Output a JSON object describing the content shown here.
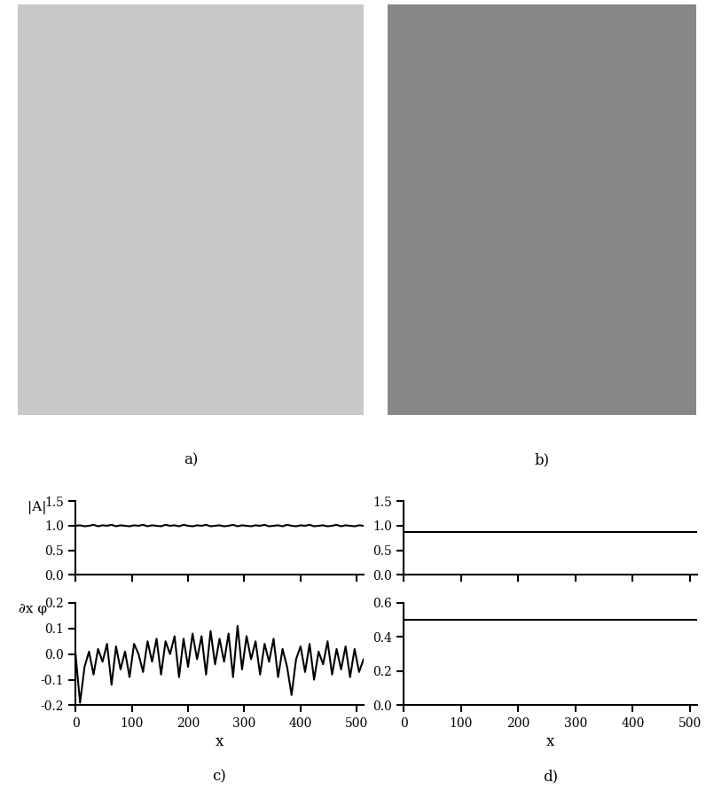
{
  "chart_data": [
    {
      "type": "image",
      "title": "a)",
      "color": "#c8c8c8"
    },
    {
      "type": "image",
      "title": "b)",
      "color": "#878787"
    },
    {
      "type": "line",
      "ylabel": "|A|",
      "color": "#000000",
      "x": [
        0,
        8,
        16,
        24,
        32,
        40,
        48,
        56,
        64,
        72,
        80,
        88,
        96,
        104,
        112,
        120,
        128,
        136,
        144,
        152,
        160,
        168,
        176,
        184,
        192,
        200,
        208,
        216,
        224,
        232,
        240,
        248,
        256,
        264,
        272,
        280,
        288,
        296,
        304,
        312,
        320,
        328,
        336,
        344,
        352,
        360,
        368,
        376,
        384,
        392,
        400,
        408,
        416,
        424,
        432,
        440,
        448,
        456,
        464,
        472,
        480,
        488,
        496,
        504,
        512
      ],
      "values": [
        1.0,
        1.01,
        0.99,
        1.0,
        1.02,
        0.99,
        1.01,
        1.0,
        1.02,
        0.99,
        1.01,
        1.0,
        0.99,
        1.01,
        1.0,
        1.02,
        0.99,
        1.01,
        1.0,
        0.99,
        1.02,
        1.0,
        1.01,
        0.99,
        1.02,
        1.0,
        0.99,
        1.01,
        1.0,
        1.02,
        0.99,
        1.0,
        1.01,
        0.99,
        1.0,
        1.02,
        0.99,
        1.01,
        1.0,
        0.99,
        1.01,
        1.0,
        1.02,
        0.99,
        1.0,
        1.01,
        0.99,
        1.02,
        1.0,
        0.99,
        1.01,
        1.0,
        1.02,
        0.99,
        1.0,
        1.01,
        0.99,
        1.0,
        1.02,
        0.99,
        1.01,
        1.0,
        0.99,
        1.01,
        1.0
      ],
      "xlim": [
        0,
        512
      ],
      "xticks": [
        0,
        100,
        200,
        300,
        400,
        500
      ],
      "tick_labels": "y",
      "ylim": [
        0,
        1.5
      ],
      "yticks": [
        {
          "value": 0,
          "label": "0.0"
        },
        {
          "value": 0.5,
          "label": "0.5"
        },
        {
          "value": 1.0,
          "label": "1.0"
        },
        {
          "value": 1.5,
          "label": "1.5"
        }
      ]
    },
    {
      "type": "line",
      "title": "c)",
      "ylabel": "∂x φ",
      "xlabel": "x",
      "color": "#000000",
      "x": [
        0,
        8,
        16,
        24,
        32,
        40,
        48,
        56,
        64,
        72,
        80,
        88,
        96,
        104,
        112,
        120,
        128,
        136,
        144,
        152,
        160,
        168,
        176,
        184,
        192,
        200,
        208,
        216,
        224,
        232,
        240,
        248,
        256,
        264,
        272,
        280,
        288,
        296,
        304,
        312,
        320,
        328,
        336,
        344,
        352,
        360,
        368,
        376,
        384,
        392,
        400,
        408,
        416,
        424,
        432,
        440,
        448,
        456,
        464,
        472,
        480,
        488,
        496,
        504,
        512
      ],
      "values": [
        0.0,
        -0.19,
        -0.05,
        0.01,
        -0.08,
        0.02,
        -0.03,
        0.04,
        -0.12,
        0.03,
        -0.06,
        0.01,
        -0.09,
        0.04,
        0.0,
        -0.07,
        0.05,
        -0.03,
        0.06,
        -0.08,
        0.05,
        0.0,
        0.07,
        -0.09,
        0.06,
        -0.05,
        0.08,
        -0.02,
        0.07,
        -0.08,
        0.09,
        -0.04,
        0.06,
        -0.03,
        0.08,
        -0.09,
        0.11,
        -0.06,
        0.07,
        -0.02,
        0.05,
        -0.08,
        0.04,
        -0.03,
        0.06,
        -0.09,
        0.02,
        -0.05,
        -0.16,
        -0.02,
        0.03,
        -0.07,
        0.04,
        -0.1,
        0.01,
        -0.04,
        0.05,
        -0.08,
        0.02,
        -0.06,
        0.03,
        -0.09,
        0.02,
        -0.07,
        -0.02
      ],
      "xlim": [
        0,
        512
      ],
      "xticks": [
        0,
        100,
        200,
        300,
        400,
        500
      ],
      "ylim": [
        -0.2,
        0.2
      ],
      "yticks": [
        {
          "value": -0.2,
          "label": "-0.2"
        },
        {
          "value": -0.1,
          "label": "-0.1"
        },
        {
          "value": 0,
          "label": "0.0"
        },
        {
          "value": 0.1,
          "label": "0.1"
        },
        {
          "value": 0.2,
          "label": "0.2"
        }
      ]
    },
    {
      "type": "line",
      "color": "#000000",
      "x": [
        0,
        512
      ],
      "values": [
        0.87,
        0.87
      ],
      "xlim": [
        0,
        512
      ],
      "xticks": [
        0,
        100,
        200,
        300,
        400,
        500
      ],
      "tick_labels": "y",
      "ylim": [
        0,
        1.5
      ],
      "yticks": [
        {
          "value": 0,
          "label": "0.0"
        },
        {
          "value": 0.5,
          "label": "0.5"
        },
        {
          "value": 1.0,
          "label": "1.0"
        },
        {
          "value": 1.5,
          "label": "1.5"
        }
      ]
    },
    {
      "type": "line",
      "title": "d)",
      "xlabel": "x",
      "color": "#000000",
      "x": [
        0,
        512
      ],
      "values": [
        0.5,
        0.5
      ],
      "xlim": [
        0,
        512
      ],
      "xticks": [
        0,
        100,
        200,
        300,
        400,
        500
      ],
      "ylim": [
        0,
        0.6
      ],
      "yticks": [
        {
          "value": 0,
          "label": "0.0"
        },
        {
          "value": 0.2,
          "label": "0.2"
        },
        {
          "value": 0.4,
          "label": "0.4"
        },
        {
          "value": 0.6,
          "label": "0.6"
        }
      ]
    }
  ]
}
